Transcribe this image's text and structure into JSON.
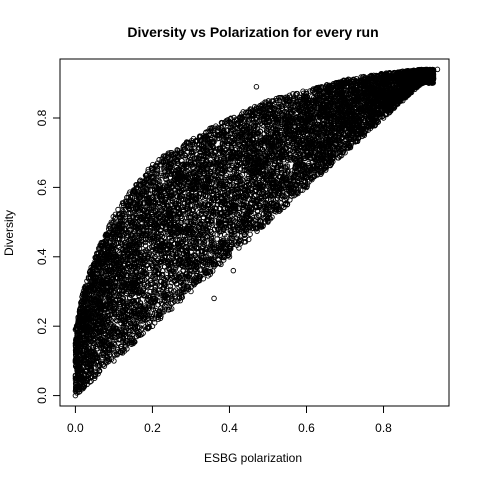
{
  "chart_data": {
    "type": "scatter",
    "title": "Diversity vs Polarization for every run",
    "xlabel": "ESBG polarization",
    "ylabel": "Diversity",
    "xlim": [
      -0.04,
      0.97
    ],
    "ylim": [
      -0.03,
      0.97
    ],
    "xticks": [
      0.0,
      0.2,
      0.4,
      0.6,
      0.8
    ],
    "xtick_labels": [
      "0.0",
      "0.2",
      "0.4",
      "0.6",
      "0.8"
    ],
    "yticks": [
      0.0,
      0.2,
      0.4,
      0.6,
      0.8
    ],
    "ytick_labels": [
      "0.0",
      "0.2",
      "0.4",
      "0.6",
      "0.8"
    ],
    "grid": false,
    "legend": "none",
    "marker": "open-circle",
    "marker_color": "#000000",
    "point_cloud": {
      "description_x_range": [
        0.0,
        0.93
      ],
      "lower_boundary": [
        [
          0.0,
          0.0
        ],
        [
          0.1,
          0.1
        ],
        [
          0.2,
          0.2
        ],
        [
          0.3,
          0.3
        ],
        [
          0.4,
          0.4
        ],
        [
          0.5,
          0.5
        ],
        [
          0.6,
          0.6
        ],
        [
          0.7,
          0.7
        ],
        [
          0.8,
          0.8
        ],
        [
          0.9,
          0.9
        ]
      ],
      "upper_boundary": [
        [
          0.0,
          0.19
        ],
        [
          0.02,
          0.3
        ],
        [
          0.05,
          0.4
        ],
        [
          0.1,
          0.52
        ],
        [
          0.15,
          0.6
        ],
        [
          0.2,
          0.67
        ],
        [
          0.3,
          0.74
        ],
        [
          0.4,
          0.8
        ],
        [
          0.5,
          0.85
        ],
        [
          0.6,
          0.88
        ],
        [
          0.7,
          0.91
        ],
        [
          0.8,
          0.93
        ],
        [
          0.9,
          0.94
        ]
      ]
    },
    "points": [
      [
        0.0,
        0.0
      ],
      [
        0.0,
        0.05
      ],
      [
        0.0,
        0.1
      ],
      [
        0.0,
        0.15
      ],
      [
        0.0,
        0.19
      ],
      [
        0.01,
        0.22
      ],
      [
        0.02,
        0.28
      ],
      [
        0.03,
        0.33
      ],
      [
        0.05,
        0.38
      ],
      [
        0.07,
        0.44
      ],
      [
        0.1,
        0.5
      ],
      [
        0.13,
        0.56
      ],
      [
        0.16,
        0.6
      ],
      [
        0.2,
        0.65
      ],
      [
        0.25,
        0.7
      ],
      [
        0.3,
        0.73
      ],
      [
        0.35,
        0.77
      ],
      [
        0.4,
        0.79
      ],
      [
        0.45,
        0.82
      ],
      [
        0.5,
        0.84
      ],
      [
        0.55,
        0.86
      ],
      [
        0.6,
        0.87
      ],
      [
        0.65,
        0.89
      ],
      [
        0.7,
        0.9
      ],
      [
        0.75,
        0.91
      ],
      [
        0.8,
        0.92
      ],
      [
        0.85,
        0.92
      ],
      [
        0.9,
        0.93
      ],
      [
        0.94,
        0.94
      ],
      [
        0.05,
        0.05
      ],
      [
        0.1,
        0.1
      ],
      [
        0.15,
        0.15
      ],
      [
        0.2,
        0.2
      ],
      [
        0.25,
        0.25
      ],
      [
        0.3,
        0.3
      ],
      [
        0.35,
        0.35
      ],
      [
        0.4,
        0.4
      ],
      [
        0.45,
        0.45
      ],
      [
        0.5,
        0.5
      ],
      [
        0.55,
        0.55
      ],
      [
        0.6,
        0.6
      ],
      [
        0.65,
        0.65
      ],
      [
        0.7,
        0.7
      ],
      [
        0.75,
        0.75
      ],
      [
        0.8,
        0.8
      ],
      [
        0.85,
        0.85
      ],
      [
        0.9,
        0.9
      ],
      [
        0.41,
        0.36
      ],
      [
        0.36,
        0.28
      ],
      [
        0.47,
        0.89
      ],
      [
        0.59,
        0.83
      ],
      [
        0.69,
        0.9
      ],
      [
        0.78,
        0.91
      ],
      [
        0.86,
        0.92
      ]
    ]
  }
}
